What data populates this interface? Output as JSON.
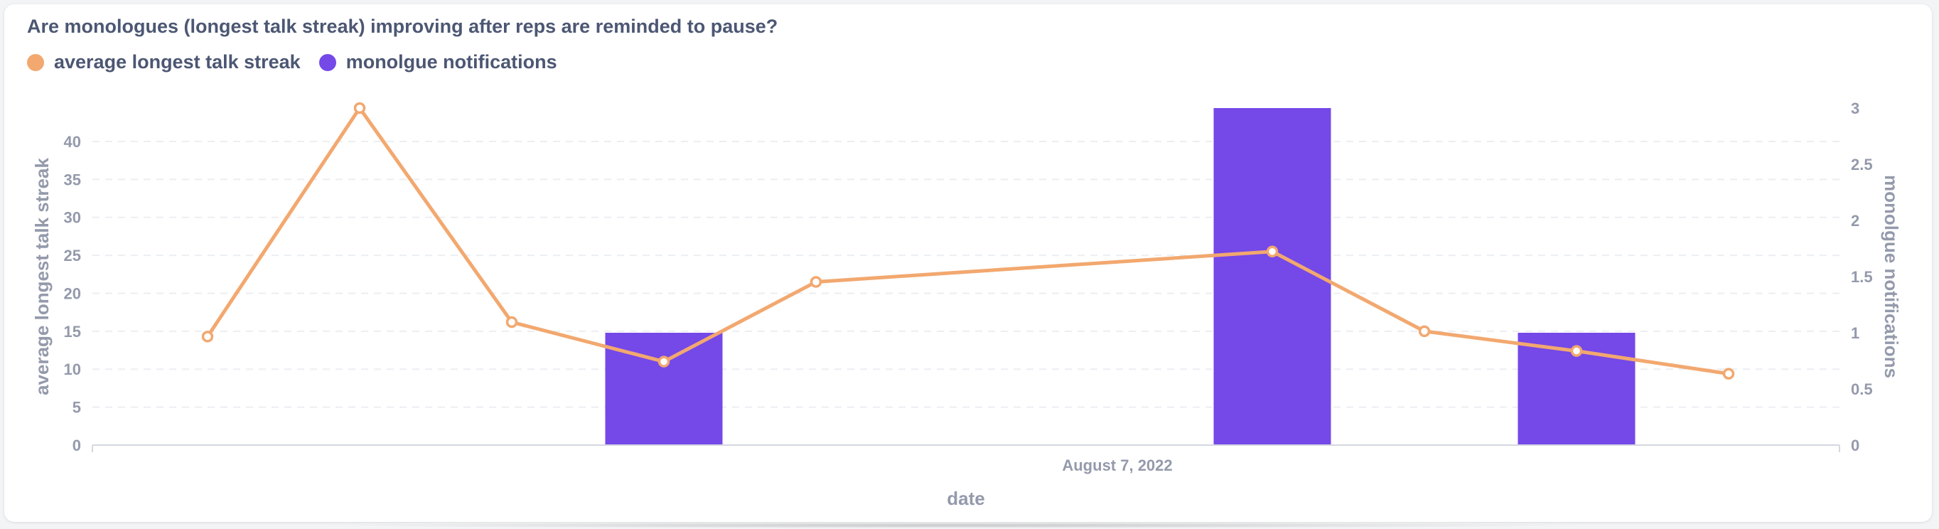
{
  "title": "Are monologues (longest talk streak) improving after reps are reminded to pause?",
  "legend": [
    {
      "label": "average longest talk streak",
      "color": "#f2a86f"
    },
    {
      "label": "monolgue notifications",
      "color": "#7548e8"
    }
  ],
  "chart_data": {
    "type": "bar",
    "title": "Are monologues (longest talk streak) improving after reps are reminded to pause?",
    "xlabel": "date",
    "x_tick_labels": [
      "August 7, 2022"
    ],
    "points": 11,
    "series": [
      {
        "name": "average longest talk streak",
        "type": "line",
        "axis": "left",
        "color": "#f2a86f",
        "values": [
          14.3,
          44.4,
          16.2,
          11,
          21.5,
          null,
          null,
          25.5,
          15,
          12.4,
          9.4
        ]
      },
      {
        "name": "monolgue notifications",
        "type": "bar",
        "axis": "right",
        "color": "#7548e8",
        "values": [
          0,
          0,
          0,
          1,
          0,
          0,
          0,
          3,
          0,
          1,
          0
        ]
      }
    ],
    "y_left": {
      "label": "average longest talk streak",
      "ylim": [
        0,
        44.4
      ],
      "ticks": [
        0,
        5,
        10,
        15,
        20,
        25,
        30,
        35,
        40
      ]
    },
    "y_right": {
      "label": "monolgue notifications",
      "ylim": [
        0,
        3
      ],
      "ticks": [
        0,
        0.5,
        1,
        1.5,
        2,
        2.5,
        3
      ]
    },
    "grid": true,
    "legend_position": "top-left"
  }
}
